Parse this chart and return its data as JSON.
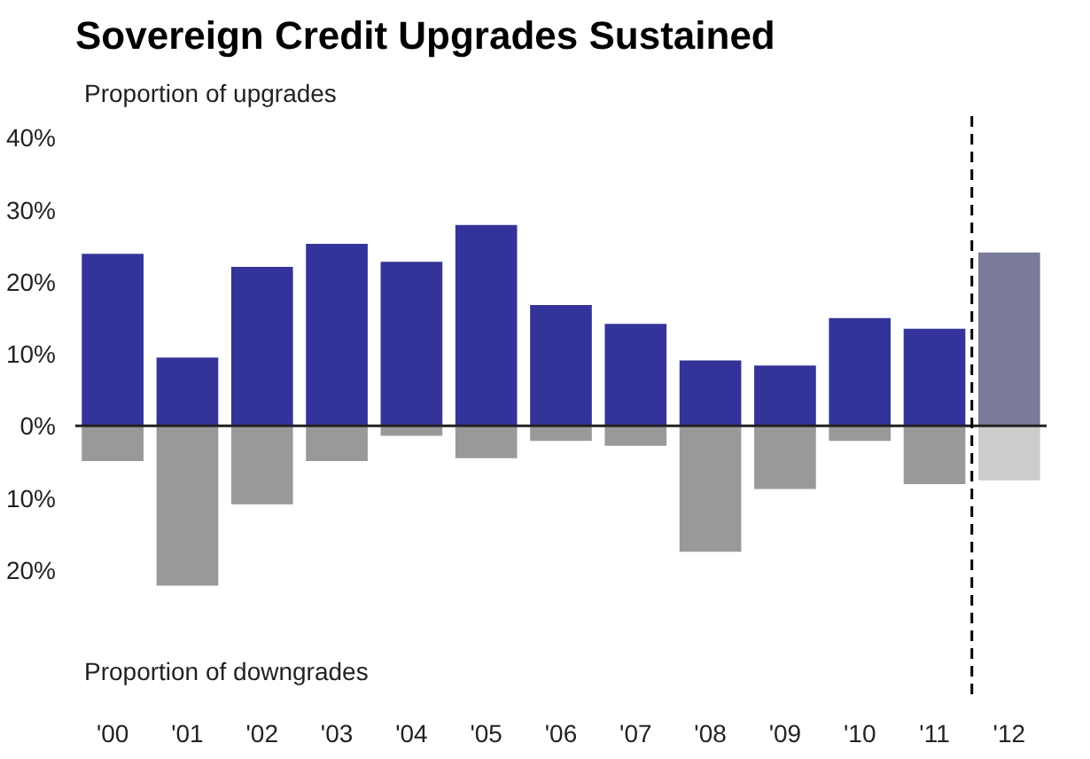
{
  "chart_data": {
    "type": "bar",
    "title": "Sovereign Credit Upgrades Sustained",
    "ylabel": "Proportion of upgrades",
    "annotations": [
      "Proportion of downgrades"
    ],
    "x": [
      2000,
      2001,
      2002,
      2003,
      2004,
      2005,
      2006,
      2007,
      2008,
      2009,
      2010,
      2011,
      2012
    ],
    "xlim": [
      1999.5,
      2012.5
    ],
    "xticks": [
      {
        "value": 2000,
        "label": "'00"
      },
      {
        "value": 2001,
        "label": "'01"
      },
      {
        "value": 2002,
        "label": "'02"
      },
      {
        "value": 2003,
        "label": "'03"
      },
      {
        "value": 2004,
        "label": "'04"
      },
      {
        "value": 2005,
        "label": "'05"
      },
      {
        "value": 2006,
        "label": "'06"
      },
      {
        "value": 2007,
        "label": "'07"
      },
      {
        "value": 2008,
        "label": "'08"
      },
      {
        "value": 2009,
        "label": "'09"
      },
      {
        "value": 2010,
        "label": "'10"
      },
      {
        "value": 2011,
        "label": "'11"
      },
      {
        "value": 2012,
        "label": "'12"
      }
    ],
    "series": [
      {
        "colors": [
          "#333399",
          "#333399",
          "#333399",
          "#333399",
          "#333399",
          "#333399",
          "#333399",
          "#333399",
          "#333399",
          "#333399",
          "#333399",
          "#333399",
          "#7a7a9a"
        ],
        "values": [
          24.0,
          9.6,
          22.2,
          25.4,
          22.9,
          28.0,
          16.9,
          14.3,
          9.2,
          8.5,
          15.1,
          13.6,
          24.2
        ]
      },
      {
        "colors": [
          "#999999",
          "#999999",
          "#999999",
          "#999999",
          "#999999",
          "#999999",
          "#999999",
          "#999999",
          "#999999",
          "#999999",
          "#999999",
          "#999999",
          "#cccccc"
        ],
        "values": [
          -5.0,
          -22.3,
          -11.0,
          -5.0,
          -1.5,
          -4.6,
          -2.2,
          -2.9,
          -17.6,
          -8.9,
          -2.2,
          -8.2,
          -7.7
        ]
      }
    ],
    "ylim": [
      -38,
      43
    ],
    "yticks": [
      {
        "value": 40,
        "label": "40%"
      },
      {
        "value": 30,
        "label": "30%"
      },
      {
        "value": 20,
        "label": "20%"
      },
      {
        "value": 10,
        "label": "10%"
      },
      {
        "value": 0,
        "label": "0%"
      },
      {
        "value": -10,
        "label": "10%"
      },
      {
        "value": -20,
        "label": "20%"
      }
    ],
    "ref_lines": [
      {
        "axis": "y",
        "value": 0,
        "color": "#222222",
        "line_style": "solid"
      },
      {
        "axis": "x",
        "value": 2011.5,
        "color": "#000000",
        "line_style": "dashed"
      }
    ],
    "stacked": true,
    "grid": false
  }
}
